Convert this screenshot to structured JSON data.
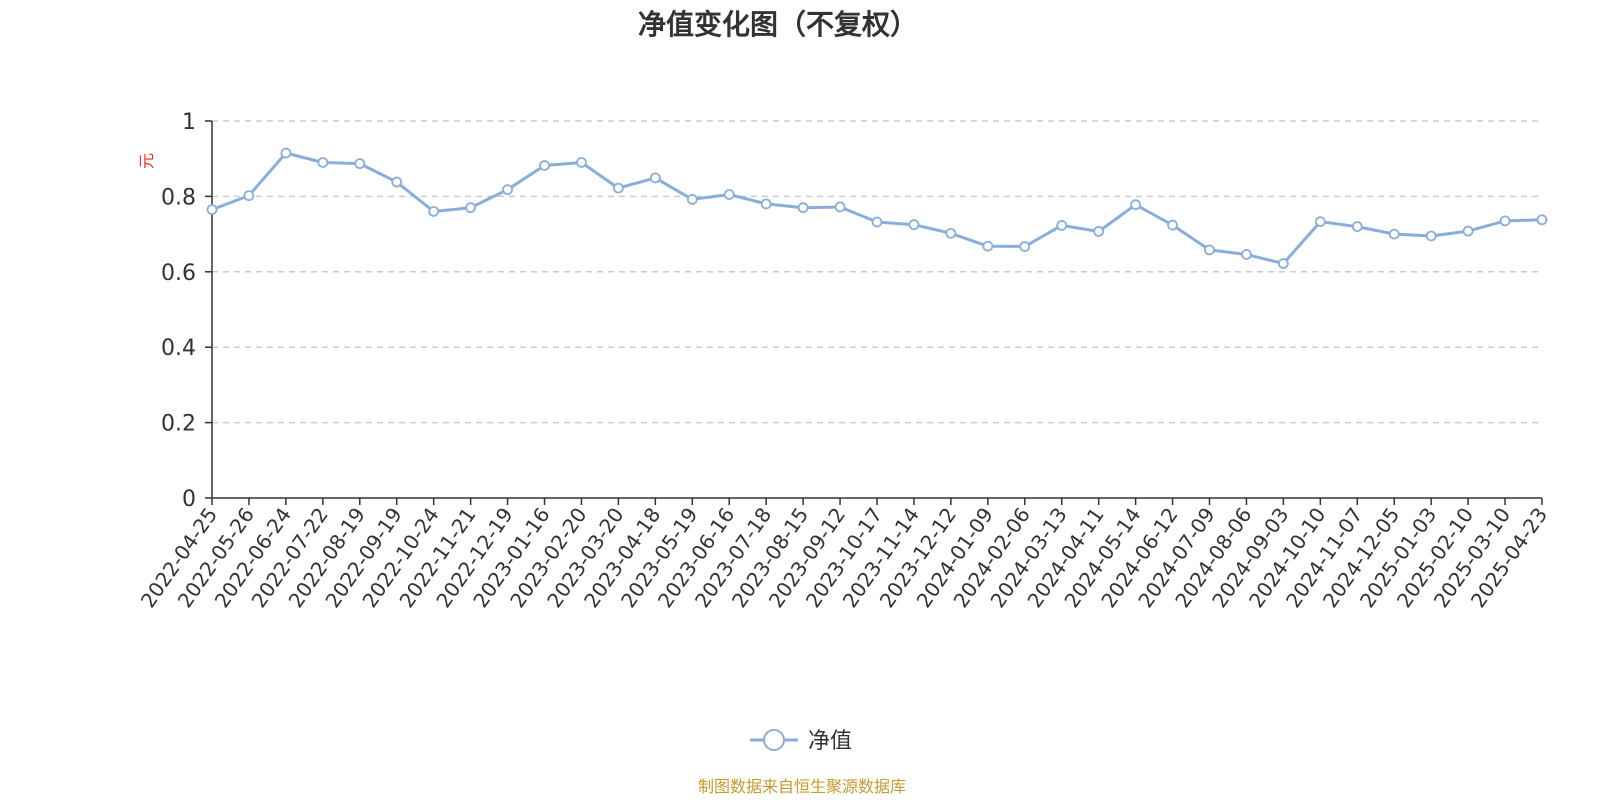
{
  "chart_data": {
    "type": "line",
    "title": "净值变化图（不复权）",
    "ylabel": "元",
    "ylim": [
      0,
      1
    ],
    "yticks": [
      "0",
      "0.2",
      "0.4",
      "0.6",
      "0.8",
      "1"
    ],
    "grid": true,
    "legend_position": "bottom-center",
    "x_tick_labels": [
      "2022-04-25",
      "2022-05-26",
      "2022-06-24",
      "2022-07-22",
      "2022-08-19",
      "2022-09-19",
      "2022-10-24",
      "2022-11-21",
      "2022-12-19",
      "2023-01-16",
      "2023-02-20",
      "2023-03-20",
      "2023-04-18",
      "2023-05-19",
      "2023-06-16",
      "2023-07-18",
      "2023-08-15",
      "2023-09-12",
      "2023-10-17",
      "2023-11-14",
      "2023-12-12",
      "2024-01-09",
      "2024-02-06",
      "2024-03-13",
      "2024-04-11",
      "2024-05-14",
      "2024-06-12",
      "2024-07-09",
      "2024-08-06",
      "2024-09-03",
      "2024-10-10",
      "2024-11-07",
      "2024-12-05",
      "2025-01-03",
      "2025-02-10",
      "2025-03-10",
      "2025-04-23"
    ],
    "series": [
      {
        "name": "净值",
        "color": "#8aaedb",
        "x": [
          "2022-04-25",
          "2022-05-26",
          "2022-06-24",
          "2022-07-22",
          "2022-08-19",
          "2022-09-19",
          "2022-10-24",
          "2022-11-21",
          "2022-12-19",
          "2023-01-16",
          "2023-02-20",
          "2023-03-20",
          "2023-04-18",
          "2023-05-19",
          "2023-06-16",
          "2023-07-18",
          "2023-08-15",
          "2023-09-12",
          "2023-10-17",
          "2023-11-14",
          "2023-12-12",
          "2024-01-09",
          "2024-02-06",
          "2024-03-13",
          "2024-04-11",
          "2024-05-14",
          "2024-06-12",
          "2024-07-09",
          "2024-08-06",
          "2024-09-03",
          "2024-10-10",
          "2024-11-07",
          "2024-12-05",
          "2025-01-03",
          "2025-02-10",
          "2025-03-10",
          "2025-04-23"
        ],
        "values": [
          0.765,
          0.802,
          0.915,
          0.89,
          0.887,
          0.838,
          0.76,
          0.77,
          0.818,
          0.882,
          0.89,
          0.822,
          0.849,
          0.792,
          0.805,
          0.78,
          0.77,
          0.772,
          0.732,
          0.725,
          0.702,
          0.668,
          0.667,
          0.723,
          0.707,
          0.778,
          0.724,
          0.658,
          0.646,
          0.622,
          0.733,
          0.72,
          0.7,
          0.695,
          0.708,
          0.735,
          0.738
        ]
      }
    ],
    "source": "制图数据来自恒生聚源数据库",
    "colors": {
      "line": "#8aaedb",
      "grid": "#cccccc",
      "axis": "#333333",
      "title": "#333333",
      "unit": "#e03030",
      "source": "#c79a2e"
    }
  }
}
